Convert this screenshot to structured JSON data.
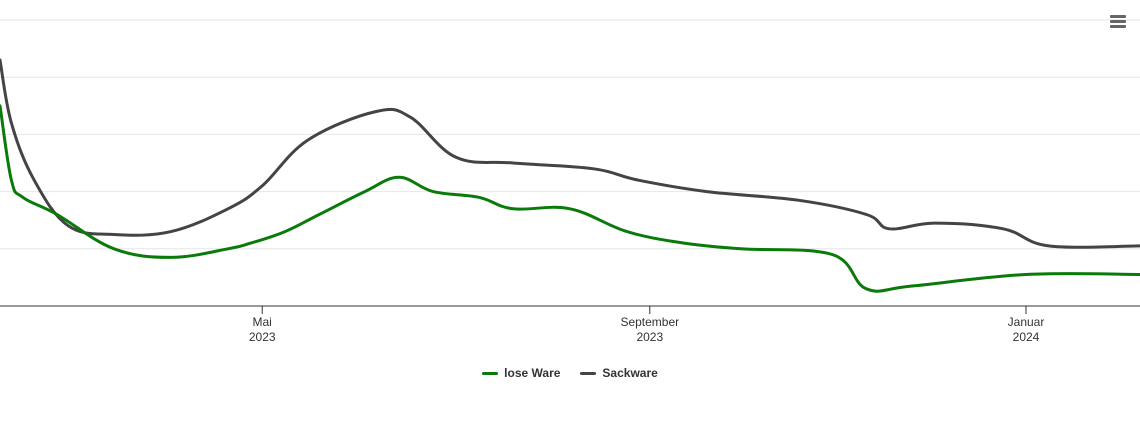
{
  "chart_data": {
    "type": "line",
    "title": "",
    "xlabel": "",
    "ylabel": "",
    "x_ticks": [
      {
        "month": "Mai",
        "year": "2023",
        "x": 2023.33
      },
      {
        "month": "September",
        "year": "2023",
        "x": 2023.67
      },
      {
        "month": "Januar",
        "year": "2024",
        "x": 2024.0
      }
    ],
    "xlim": [
      2023.1,
      2024.1
    ],
    "ylim": [
      0,
      5
    ],
    "grid": true,
    "legend": "bottom-center",
    "series": [
      {
        "name": "lose Ware",
        "color": "#0a7a0a",
        "points": [
          [
            2023.1,
            3.5
          ],
          [
            2023.11,
            2.2
          ],
          [
            2023.12,
            1.9
          ],
          [
            2023.15,
            1.6
          ],
          [
            2023.2,
            1.0
          ],
          [
            2023.25,
            0.85
          ],
          [
            2023.3,
            1.0
          ],
          [
            2023.32,
            1.1
          ],
          [
            2023.35,
            1.3
          ],
          [
            2023.38,
            1.6
          ],
          [
            2023.42,
            2.0
          ],
          [
            2023.45,
            2.25
          ],
          [
            2023.48,
            2.0
          ],
          [
            2023.52,
            1.9
          ],
          [
            2023.55,
            1.7
          ],
          [
            2023.6,
            1.7
          ],
          [
            2023.65,
            1.3
          ],
          [
            2023.7,
            1.1
          ],
          [
            2023.75,
            1.0
          ],
          [
            2023.83,
            0.9
          ],
          [
            2023.86,
            0.3
          ],
          [
            2023.9,
            0.35
          ],
          [
            2024.0,
            0.55
          ],
          [
            2024.1,
            0.55
          ]
        ]
      },
      {
        "name": "Sackware",
        "color": "#444444",
        "points": [
          [
            2023.1,
            4.3
          ],
          [
            2023.11,
            3.2
          ],
          [
            2023.13,
            2.2
          ],
          [
            2023.16,
            1.4
          ],
          [
            2023.2,
            1.25
          ],
          [
            2023.25,
            1.3
          ],
          [
            2023.3,
            1.7
          ],
          [
            2023.33,
            2.1
          ],
          [
            2023.37,
            2.9
          ],
          [
            2023.43,
            3.4
          ],
          [
            2023.46,
            3.3
          ],
          [
            2023.5,
            2.6
          ],
          [
            2023.55,
            2.5
          ],
          [
            2023.62,
            2.4
          ],
          [
            2023.66,
            2.2
          ],
          [
            2023.72,
            2.0
          ],
          [
            2023.8,
            1.85
          ],
          [
            2023.86,
            1.6
          ],
          [
            2023.88,
            1.35
          ],
          [
            2023.92,
            1.45
          ],
          [
            2023.98,
            1.35
          ],
          [
            2024.02,
            1.05
          ],
          [
            2024.1,
            1.05
          ]
        ]
      }
    ]
  },
  "toolbar": {
    "menu_icon": "hamburger-menu-icon"
  }
}
